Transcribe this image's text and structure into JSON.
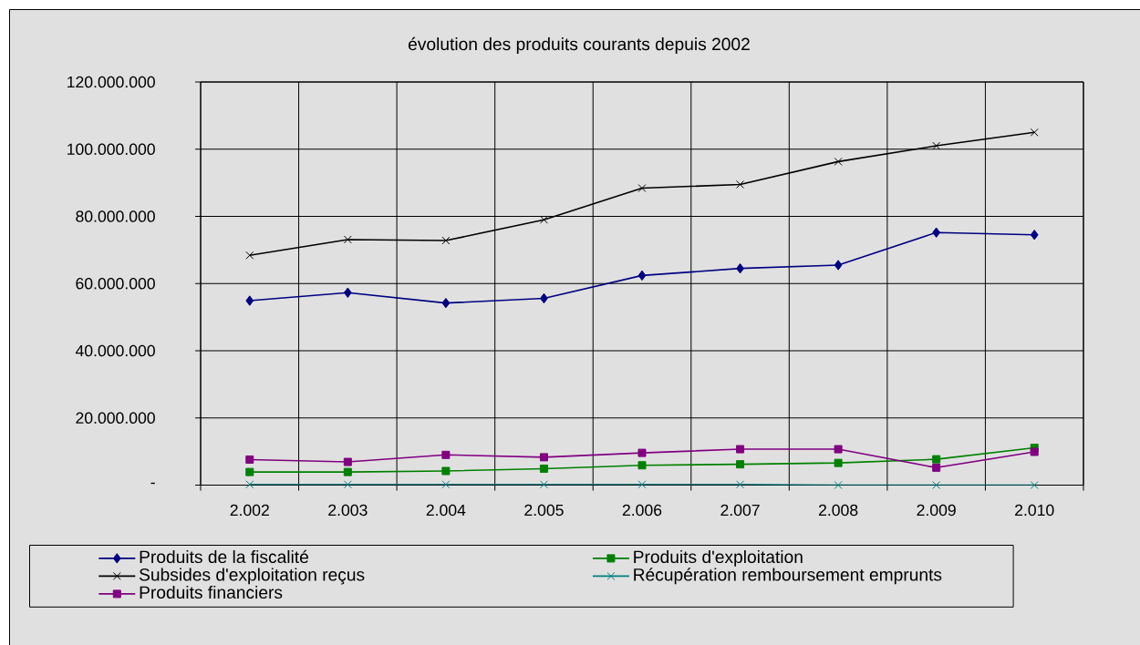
{
  "chart_data": {
    "type": "line",
    "title": "évolution des produits courants depuis 2002",
    "categories": [
      "2.002",
      "2.003",
      "2.004",
      "2.005",
      "2.006",
      "2.007",
      "2.008",
      "2.009",
      "2.010"
    ],
    "series": [
      {
        "name": "Produits de la fiscalité",
        "color": "#000080",
        "marker": "diamond",
        "values": [
          54900000,
          57300000,
          54200000,
          55600000,
          62400000,
          64500000,
          65500000,
          75200000,
          74500000
        ]
      },
      {
        "name": "Produits d'exploitation",
        "color": "#008000",
        "marker": "square",
        "values": [
          3900000,
          3900000,
          4200000,
          4900000,
          5900000,
          6200000,
          6600000,
          7700000,
          11100000
        ]
      },
      {
        "name": "Subsides d'exploitation reçus",
        "color": "#000000",
        "marker": "cross",
        "values": [
          68400000,
          73100000,
          72800000,
          79000000,
          88400000,
          89500000,
          96300000,
          101000000,
          105000000
        ]
      },
      {
        "name": "Récupération remboursement emprunts",
        "color": "#008080",
        "marker": "cross",
        "values": [
          200000,
          200000,
          200000,
          200000,
          200000,
          200000,
          0,
          0,
          0
        ]
      },
      {
        "name": "Produits financiers",
        "color": "#800080",
        "marker": "square",
        "values": [
          7600000,
          6900000,
          9000000,
          8300000,
          9600000,
          10700000,
          10700000,
          5200000,
          9900000
        ]
      }
    ],
    "ylim": [
      0,
      120000000
    ],
    "yticks": [
      {
        "value": 0,
        "label": "-"
      },
      {
        "value": 20000000,
        "label": "20.000.000"
      },
      {
        "value": 40000000,
        "label": "40.000.000"
      },
      {
        "value": 60000000,
        "label": "60.000.000"
      },
      {
        "value": 80000000,
        "label": "80.000.000"
      },
      {
        "value": 100000000,
        "label": "100.000.000"
      },
      {
        "value": 120000000,
        "label": "120.000.000"
      }
    ],
    "grid": true,
    "legend": "bottom"
  }
}
